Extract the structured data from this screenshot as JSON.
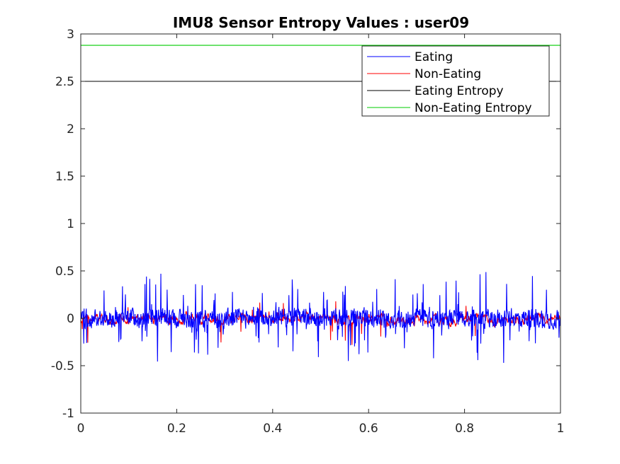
{
  "chart_data": {
    "type": "line",
    "title": "IMU8 Sensor Entropy Values : user09",
    "xlabel": "",
    "ylabel": "",
    "xlim": [
      0,
      1
    ],
    "ylim": [
      -1,
      3
    ],
    "xticks": [
      0,
      0.2,
      0.4,
      0.6,
      0.8,
      1
    ],
    "xtick_labels": [
      "0",
      "0.2",
      "0.4",
      "0.6",
      "0.8",
      "1"
    ],
    "yticks": [
      -1,
      -0.5,
      0,
      0.5,
      1,
      1.5,
      2,
      2.5,
      3
    ],
    "ytick_labels": [
      "-1",
      "-0.5",
      "0",
      "0.5",
      "1",
      "1.5",
      "2",
      "2.5",
      "3"
    ],
    "grid": false,
    "legend_position": "top-right",
    "series": [
      {
        "name": "Eating",
        "color": "#0000ff",
        "kind": "noisy-signal",
        "x_range": [
          0,
          1
        ],
        "approx_range": [
          -0.5,
          0.5
        ],
        "note": "high-frequency signal centered on 0, spikes up to ~0.49 and down to ~-0.49"
      },
      {
        "name": "Non-Eating",
        "color": "#ff0000",
        "kind": "noisy-signal",
        "x_range": [
          0,
          1
        ],
        "approx_range": [
          -0.4,
          0.27
        ],
        "note": "lower amplitude signal centered on 0"
      },
      {
        "name": "Eating Entropy",
        "color": "#000000",
        "kind": "constant",
        "value": 2.5
      },
      {
        "name": "Non-Eating Entropy",
        "color": "#00cc00",
        "kind": "constant",
        "value": 2.88
      }
    ]
  }
}
